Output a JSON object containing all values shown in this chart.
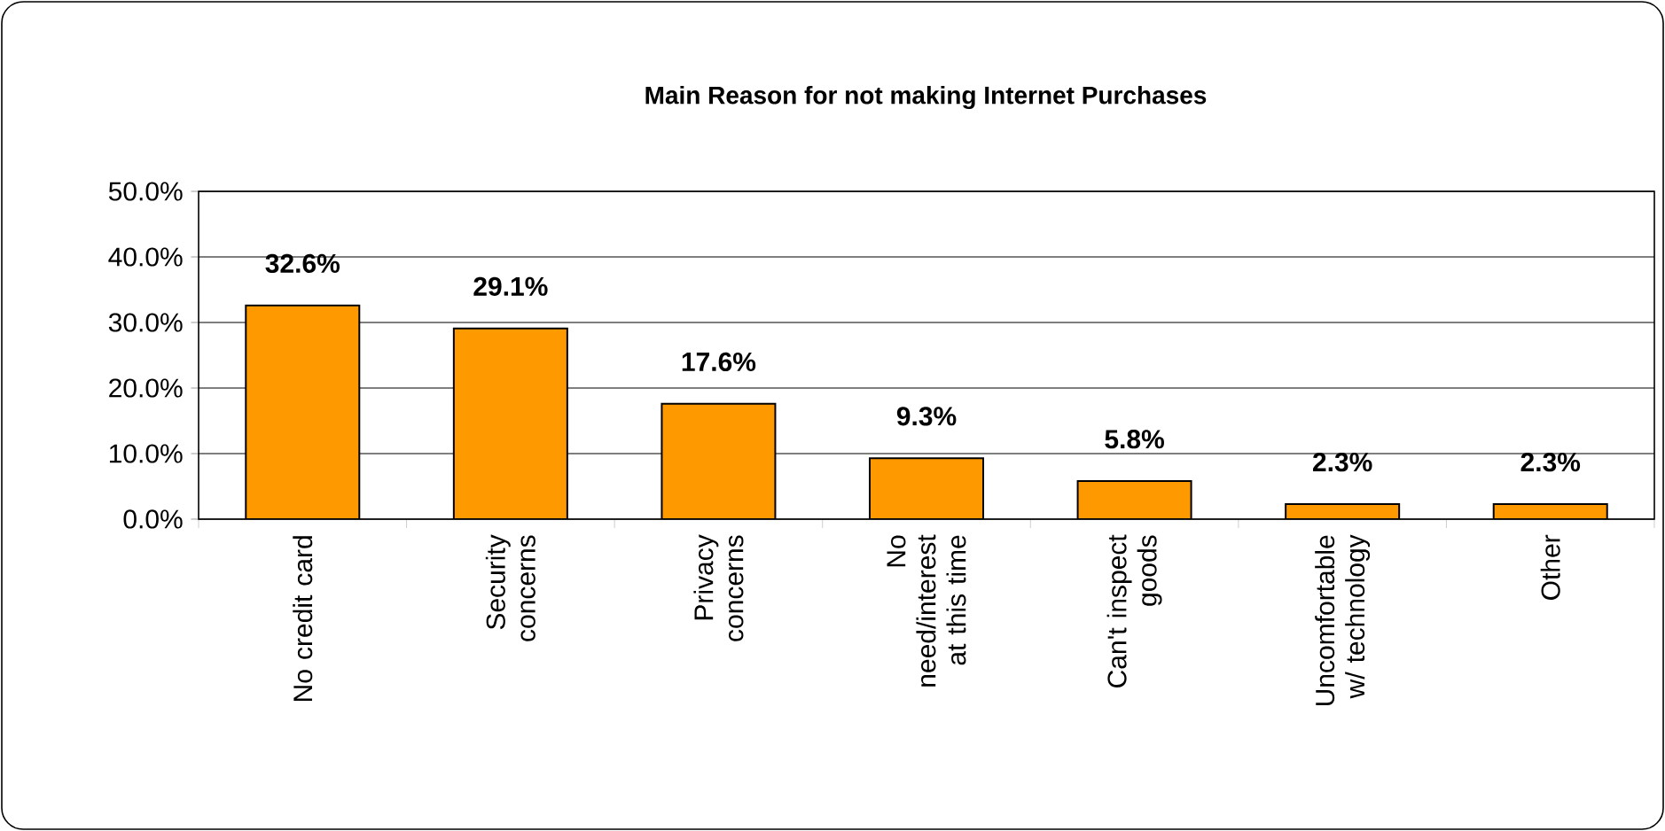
{
  "chart_data": {
    "type": "bar",
    "title": "Main Reason for not making Internet Purchases",
    "categories": [
      "No credit card",
      "Security concerns",
      "Privacy concerns",
      "No need/interest at this time",
      "Can't inspect goods",
      "Uncomfortable w/ technology",
      "Other"
    ],
    "values": [
      32.6,
      29.1,
      17.6,
      9.3,
      5.8,
      2.3,
      2.3
    ],
    "value_labels": [
      "32.6%",
      "29.1%",
      "17.6%",
      "9.3%",
      "5.8%",
      "2.3%",
      "2.3%"
    ],
    "color": "#ff9900",
    "ylim": [
      0,
      50
    ],
    "yticks": [
      {
        "value": 0,
        "label": "0.0%"
      },
      {
        "value": 10,
        "label": "10.0%"
      },
      {
        "value": 20,
        "label": "20.0%"
      },
      {
        "value": 30,
        "label": "30.0%"
      },
      {
        "value": 40,
        "label": "40.0%"
      },
      {
        "value": 50,
        "label": "50.0%"
      }
    ],
    "grid": "y"
  }
}
